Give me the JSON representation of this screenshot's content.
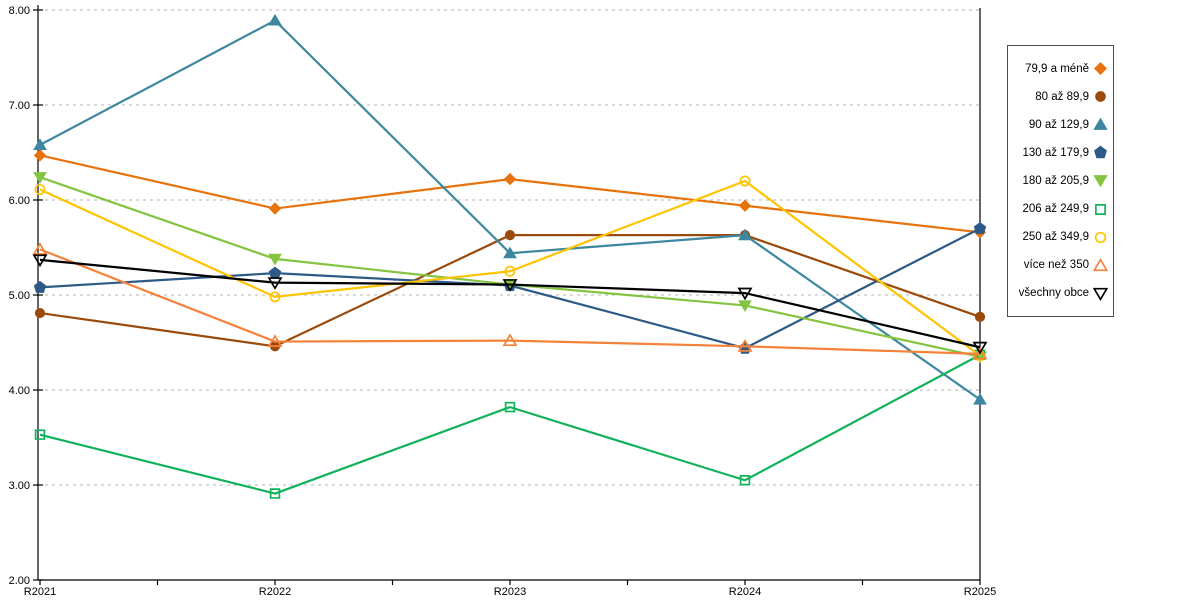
{
  "chart_data": {
    "type": "line",
    "title": "",
    "xlabel": "",
    "ylabel": "",
    "categories": [
      "R2021",
      "R2022",
      "R2023",
      "R2024",
      "R2025"
    ],
    "ylim": [
      2,
      8
    ],
    "ytick_step": 1,
    "ytick_labels": [
      "2.00",
      "3.00",
      "4.00",
      "5.00",
      "6.00",
      "7.00",
      "8.00"
    ],
    "grid": "horizontal-dashed",
    "legend_position": "right",
    "series": [
      {
        "name": "79,9 a méně",
        "color": "#e8720c",
        "marker": "diamond",
        "open": false,
        "values": [
          6.47,
          5.91,
          6.22,
          5.94,
          5.66
        ]
      },
      {
        "name": "80 až 89,9",
        "color": "#9a4a0b",
        "marker": "circle",
        "open": false,
        "values": [
          4.81,
          4.46,
          5.63,
          5.63,
          4.77
        ]
      },
      {
        "name": "90 až 129,9",
        "color": "#3d87a0",
        "marker": "triangle-up",
        "open": false,
        "values": [
          6.58,
          7.89,
          5.44,
          5.63,
          3.9
        ]
      },
      {
        "name": "130 až 179,9",
        "color": "#2e5a88",
        "marker": "pentagon",
        "open": false,
        "values": [
          5.08,
          5.23,
          5.1,
          4.44,
          5.7
        ]
      },
      {
        "name": "180 až 205,9",
        "color": "#84c441",
        "marker": "triangle-down",
        "open": false,
        "values": [
          6.24,
          5.38,
          5.11,
          4.89,
          4.35
        ]
      },
      {
        "name": "206 až 249,9",
        "color": "#12b25a",
        "marker": "square",
        "open": true,
        "values": [
          3.53,
          2.91,
          3.82,
          3.05,
          4.37
        ]
      },
      {
        "name": "250 až 349,9",
        "color": "#ffc400",
        "marker": "circle",
        "open": true,
        "values": [
          6.11,
          4.98,
          5.25,
          6.2,
          4.36
        ]
      },
      {
        "name": "více než 350",
        "color": "#f5823a",
        "marker": "triangle-up",
        "open": true,
        "values": [
          5.48,
          4.51,
          4.52,
          4.46,
          4.38
        ]
      },
      {
        "name": "všechny obce",
        "color": "#000000",
        "marker": "triangle-down",
        "open": true,
        "values": [
          5.37,
          5.13,
          5.11,
          5.02,
          4.45
        ]
      }
    ],
    "style": {
      "gridline_color": "#b3b3b3",
      "axis_color": "#000000",
      "background": "#ffffff",
      "legend_border": "#4d4d4d"
    }
  }
}
